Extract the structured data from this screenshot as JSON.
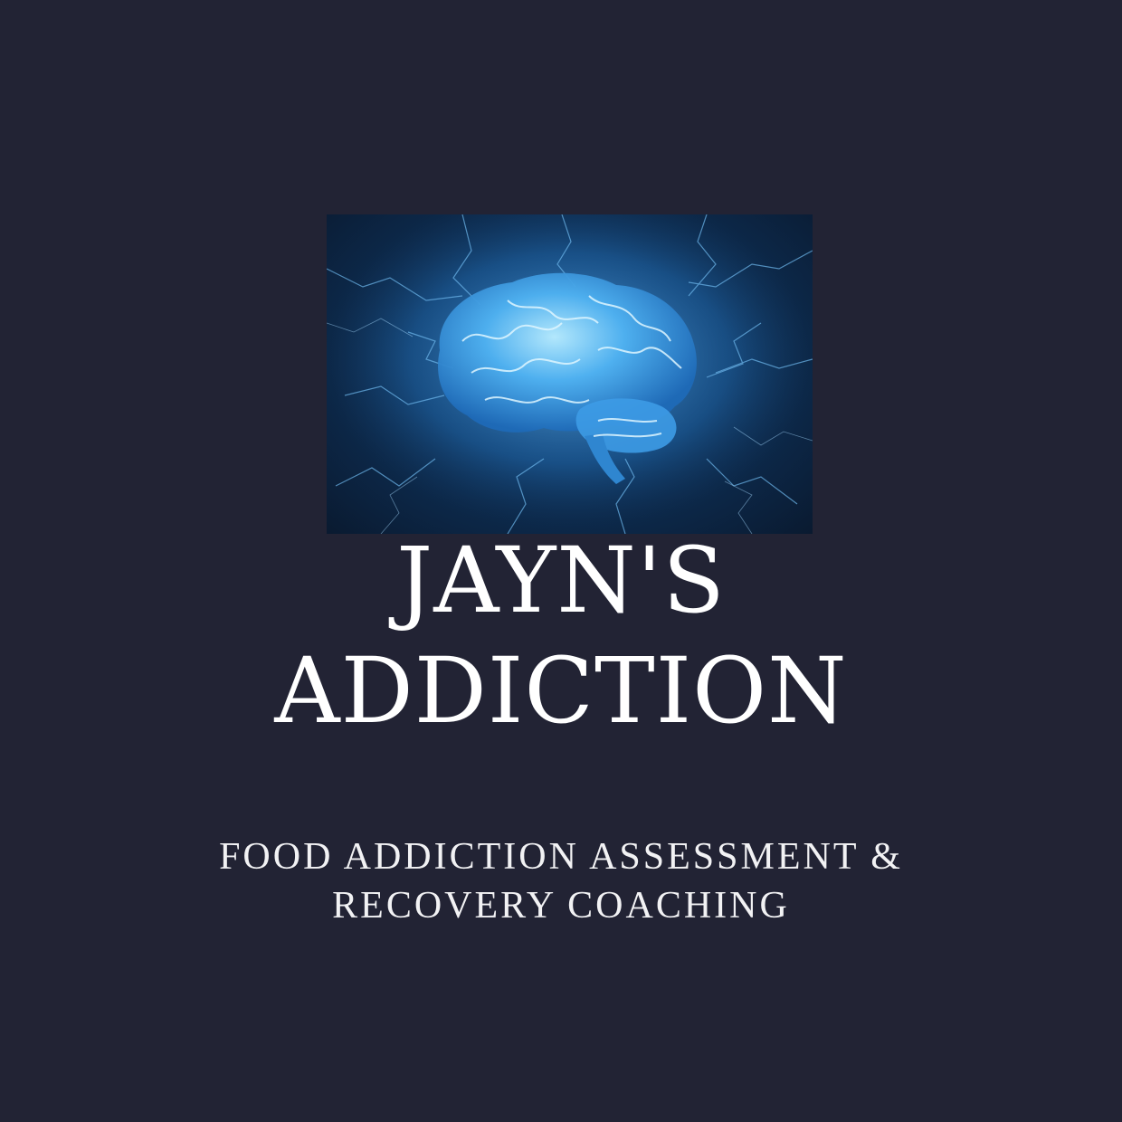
{
  "logo": {
    "image": "brain-illustration",
    "colors": {
      "background": "#222334",
      "brain_glow": "#7fd3ff",
      "brain_core": "#2f8fe0",
      "text": "#ffffff"
    }
  },
  "title": {
    "line1": "JAYN'S",
    "line2": "ADDICTION"
  },
  "subtitle": {
    "line1": "FOOD ADDICTION ASSESSMENT &",
    "line2": "RECOVERY COACHING"
  }
}
